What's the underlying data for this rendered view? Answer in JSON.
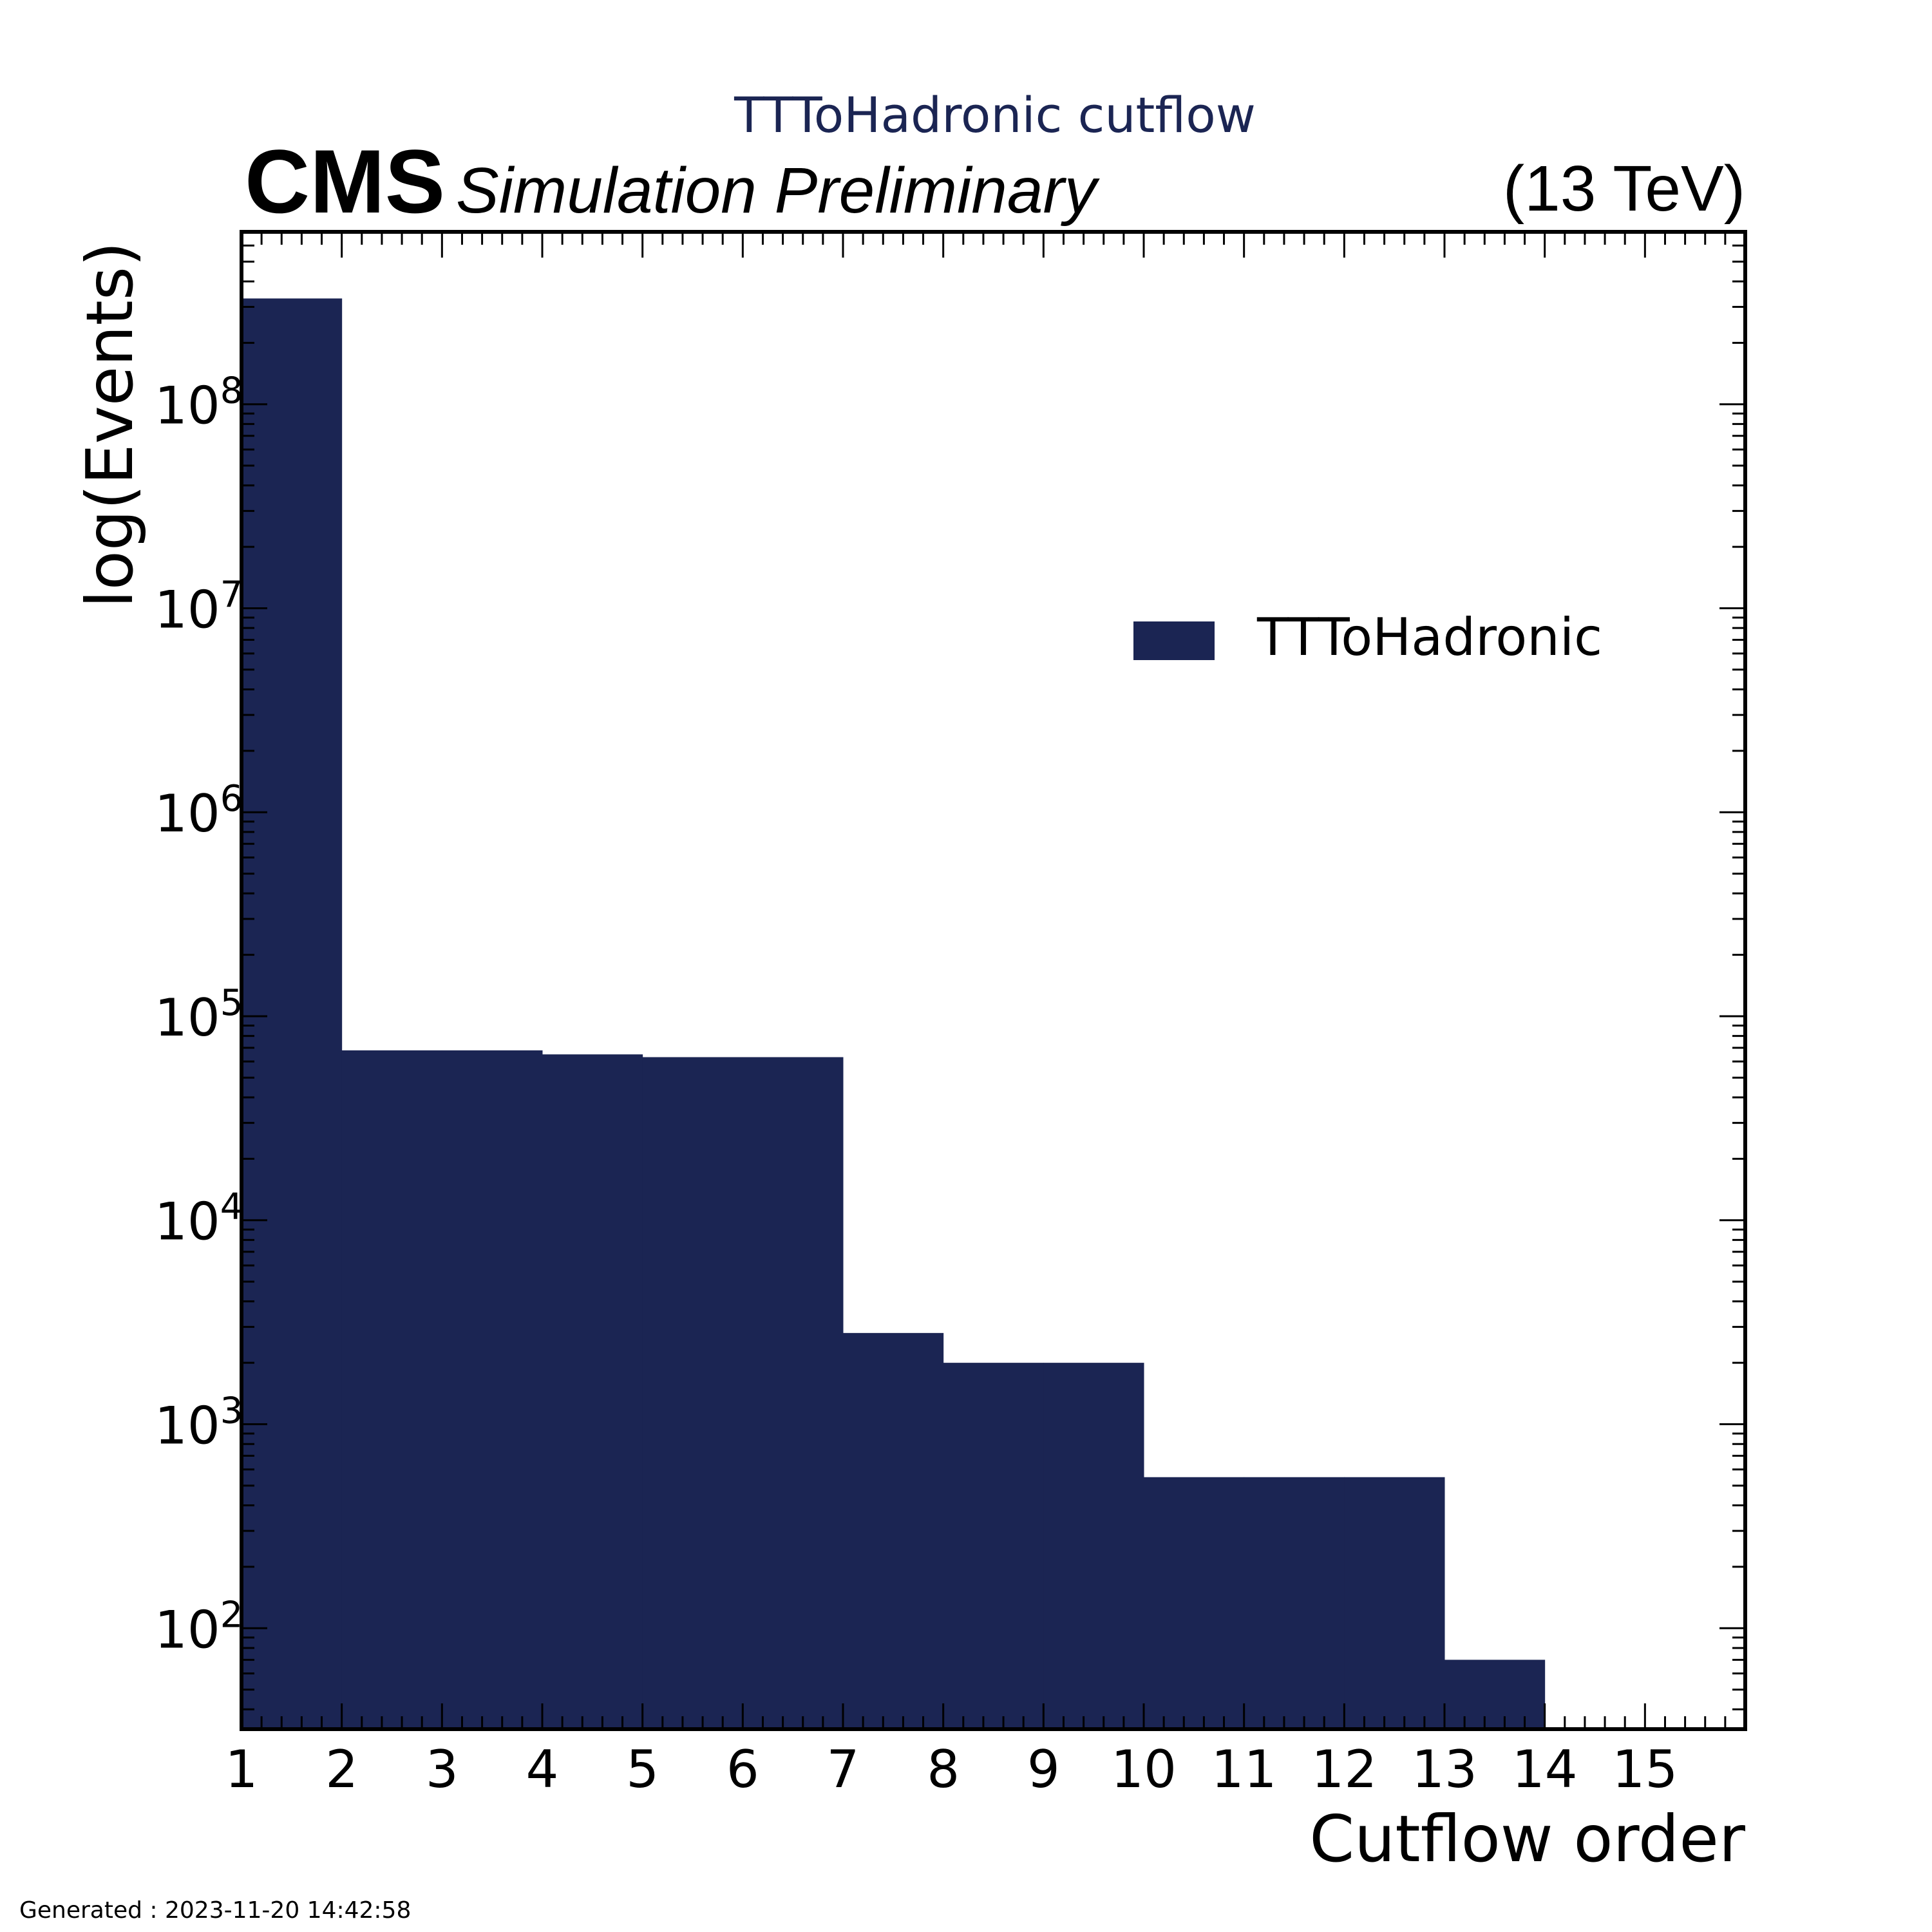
{
  "chart_data": {
    "type": "bar",
    "title": "TTToHadronic cutflow",
    "experiment_label": "CMS",
    "status_label": "Simulation Preliminary",
    "energy_label": "(13 TeV)",
    "xlabel": "Cutflow order",
    "ylabel": "log(Events)",
    "yscale": "log",
    "xlim": [
      1,
      16
    ],
    "ylim": [
      32,
      700000000
    ],
    "x_ticks": [
      "1",
      "2",
      "3",
      "4",
      "5",
      "6",
      "7",
      "8",
      "9",
      "10",
      "11",
      "12",
      "13",
      "14",
      "15"
    ],
    "y_ticks": [
      {
        "value": 100,
        "base": "10",
        "exp": "2"
      },
      {
        "value": 1000,
        "base": "10",
        "exp": "3"
      },
      {
        "value": 10000,
        "base": "10",
        "exp": "4"
      },
      {
        "value": 100000,
        "base": "10",
        "exp": "5"
      },
      {
        "value": 1000000,
        "base": "10",
        "exp": "6"
      },
      {
        "value": 10000000,
        "base": "10",
        "exp": "7"
      },
      {
        "value": 100000000,
        "base": "10",
        "exp": "8"
      }
    ],
    "bin_edges": [
      1,
      2,
      3,
      4,
      5,
      6,
      7,
      8,
      9,
      10,
      11,
      12,
      13,
      14,
      15,
      16
    ],
    "values": [
      330000000,
      68000,
      68000,
      65000,
      63000,
      63000,
      2800,
      2000,
      2000,
      550,
      550,
      550,
      70,
      0,
      0
    ],
    "series": [
      {
        "name": "TTToHadronic",
        "color": "#1b2553"
      }
    ],
    "legend_position": "upper-right",
    "grid": false
  },
  "footer": {
    "generated": "Generated : 2023-11-20 14:42:58"
  }
}
